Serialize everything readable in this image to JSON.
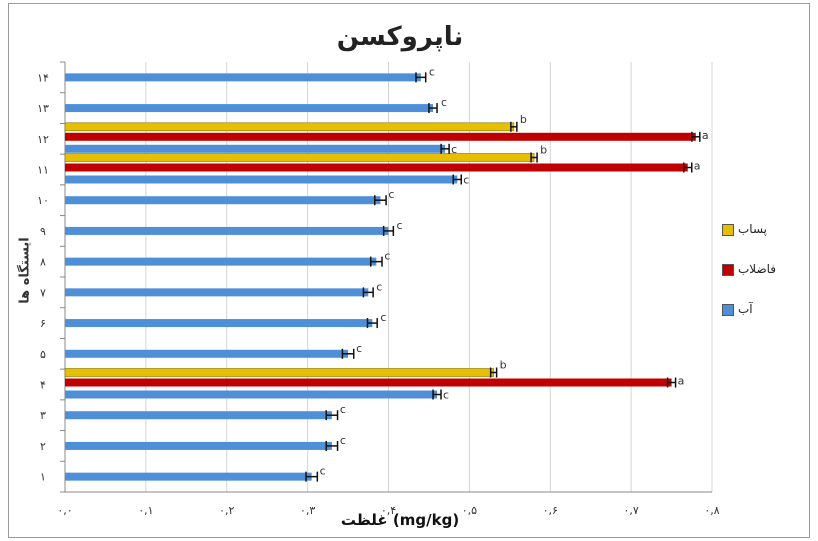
{
  "chart_data": {
    "type": "bar",
    "orientation": "horizontal",
    "title": "ناپروکسن",
    "xlabel": "غلظت (mg/kg)",
    "ylabel": "ایستگاه ها",
    "categories": [
      "۱",
      "۲",
      "۳",
      "۴",
      "۵",
      "۶",
      "۷",
      "۸",
      "۹",
      "۱۰",
      "۱۱",
      "۱۲",
      "۱۳",
      "۱۴"
    ],
    "x_ticks": [
      "۰,۰",
      "۰,۱",
      "۰,۲",
      "۰,۳",
      "۰,۴",
      "۰,۵",
      "۰,۶",
      "۰,۷",
      "۰,۸"
    ],
    "xlim": [
      0,
      0.8
    ],
    "grid": "vertical",
    "legend_position": "right",
    "series": [
      {
        "name": "آب",
        "color": "#4f8fd8",
        "values": [
          0.305,
          0.33,
          0.33,
          0.46,
          0.35,
          0.38,
          0.375,
          0.385,
          0.4,
          0.39,
          0.485,
          0.47,
          0.455,
          0.44
        ],
        "error": [
          0.007,
          0.007,
          0.007,
          0.005,
          0.007,
          0.006,
          0.006,
          0.007,
          0.006,
          0.007,
          0.006,
          0.006,
          0.005,
          0.006
        ],
        "labels": [
          "c",
          "c",
          "c",
          "c",
          "c",
          "c",
          "c",
          "c",
          "c",
          "c",
          "c",
          "c",
          "c",
          "c"
        ]
      },
      {
        "name": "فاضلاب",
        "color": "#c00000",
        "values": [
          null,
          null,
          null,
          0.75,
          null,
          null,
          null,
          null,
          null,
          null,
          0.77,
          0.78,
          null,
          null
        ],
        "labels": [
          null,
          null,
          null,
          "a",
          null,
          null,
          null,
          null,
          null,
          null,
          "a",
          "a",
          null,
          null
        ]
      },
      {
        "name": "پساب",
        "color": "#e6c000",
        "values": [
          null,
          null,
          null,
          0.53,
          null,
          null,
          null,
          null,
          null,
          null,
          0.58,
          0.555,
          null,
          null
        ],
        "labels": [
          null,
          null,
          null,
          "b",
          null,
          null,
          null,
          null,
          null,
          null,
          "b",
          "b",
          null,
          null
        ]
      }
    ]
  }
}
